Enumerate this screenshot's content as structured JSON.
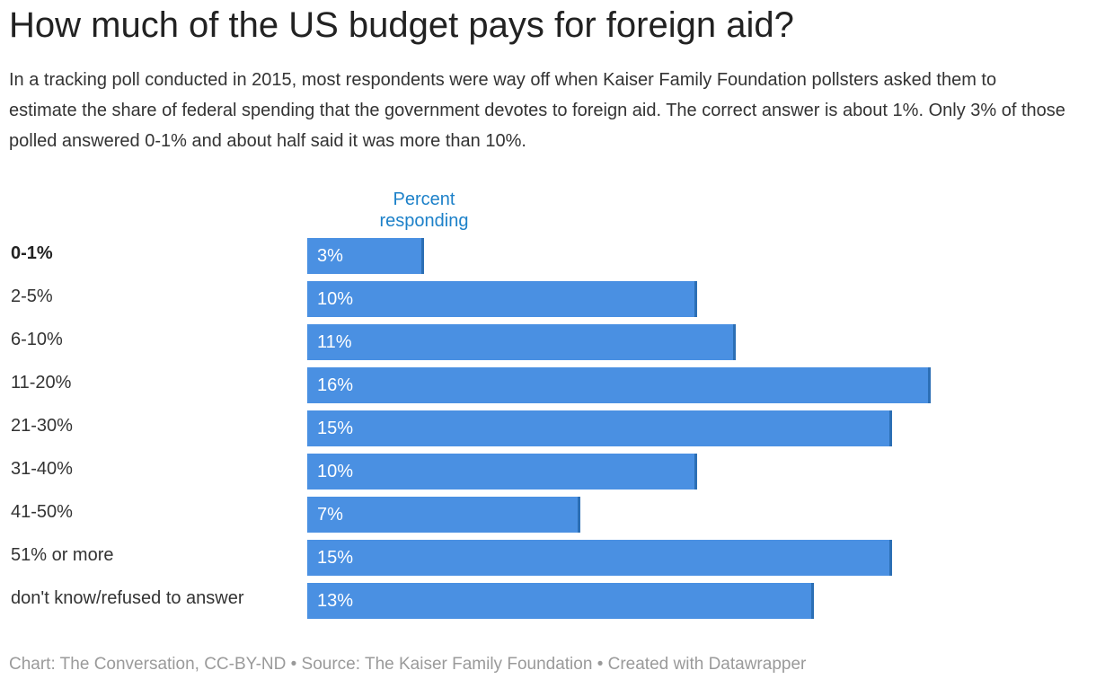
{
  "title": "How much of the US budget pays for foreign aid?",
  "subtitle": "In a tracking poll conducted in 2015, most respondents were way off when Kaiser Family Foundation pollsters asked them to estimate the share of federal spending that the government devotes to foreign aid. The correct answer is about 1%. Only 3% of those polled answered 0-1% and about half said it was more than 10%.",
  "column_header": "Percent responding",
  "footer": "Chart: The Conversation, CC-BY-ND • Source: The Kaiser Family Foundation • Created with Datawrapper",
  "colors": {
    "bar": "#4a90e2",
    "bar_edge": "#2c6fb5",
    "header": "#1d81c9"
  },
  "chart_data": {
    "type": "bar",
    "orientation": "horizontal",
    "title": "How much of the US budget pays for foreign aid?",
    "xlabel": "Percent responding",
    "ylabel": "",
    "categories": [
      "0-1%",
      "2-5%",
      "6-10%",
      "11-20%",
      "21-30%",
      "31-40%",
      "41-50%",
      "51% or more",
      "don't know/refused to answer"
    ],
    "values": [
      3,
      10,
      11,
      16,
      15,
      10,
      7,
      15,
      13
    ],
    "value_labels": [
      "3%",
      "10%",
      "11%",
      "16%",
      "15%",
      "10%",
      "7%",
      "15%",
      "13%"
    ],
    "highlight": "0-1%",
    "xlim": [
      0,
      16
    ],
    "grid": false
  }
}
